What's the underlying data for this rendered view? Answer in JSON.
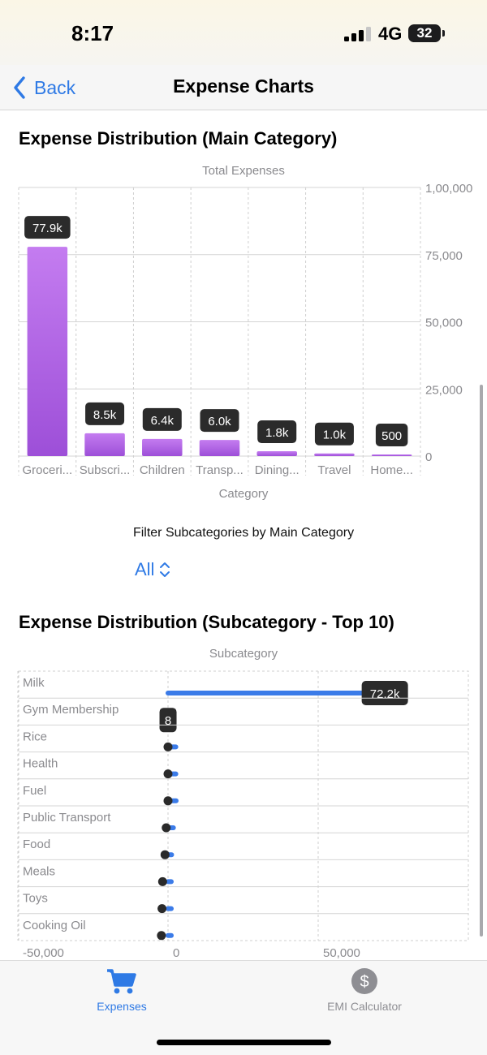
{
  "status": {
    "time": "8:17",
    "network": "4G",
    "battery": "32"
  },
  "nav": {
    "back_label": "Back",
    "title": "Expense Charts"
  },
  "main_chart_section": {
    "title": "Expense Distribution (Main Category)"
  },
  "filter": {
    "label": "Filter Subcategories by Main Category",
    "selected": "All"
  },
  "sub_chart_section": {
    "title": "Expense Distribution (Subcategory - Top 10)"
  },
  "tabs": [
    {
      "label": "Expenses",
      "icon": "cart-icon",
      "active": true
    },
    {
      "label": "EMI Calculator",
      "icon": "dollar-circle-icon",
      "active": false
    }
  ],
  "colors": {
    "accent": "#2f7ae5",
    "bar_top": "#c47cf0",
    "bar_bottom": "#9d4fd8",
    "label_bg": "#2b2b2b",
    "sub_bar": "#3b7be8",
    "point": "#2a2a2a"
  },
  "chart_data": [
    {
      "type": "bar",
      "title": "Total Expenses",
      "xlabel": "Category",
      "ylabel": "",
      "categories": [
        "Groceri...",
        "Subscri...",
        "Children",
        "Transp...",
        "Dining...",
        "Travel",
        "Home..."
      ],
      "values": [
        77900,
        8500,
        6400,
        6000,
        1800,
        1000,
        500
      ],
      "data_labels": [
        "77.9k",
        "8.5k",
        "6.4k",
        "6.0k",
        "1.8k",
        "1.0k",
        "500"
      ],
      "ylim": [
        0,
        100000
      ],
      "yticks": [
        0,
        25000,
        50000,
        75000,
        100000
      ],
      "ytick_labels": [
        "0",
        "25,000",
        "50,000",
        "75,000",
        "1,00,000"
      ],
      "grid": true
    },
    {
      "type": "bar",
      "orientation": "horizontal",
      "title": "Subcategory",
      "categories": [
        "Milk",
        "Gym Membership",
        "Rice",
        "Health",
        "Fuel",
        "Public Transport",
        "Food",
        "Meals",
        "Toys",
        "Cooking Oil"
      ],
      "values": [
        72200,
        8,
        2600,
        2600,
        2700,
        1800,
        1200,
        500,
        400,
        300
      ],
      "point_values": [
        72200,
        8,
        0,
        0,
        0,
        -600,
        -1000,
        -1800,
        -2000,
        -2200
      ],
      "data_labels": [
        "72.2k",
        "8",
        "",
        "",
        "",
        "",
        "",
        "",
        "",
        ""
      ],
      "xlim": [
        -50000,
        100000
      ],
      "xticks": [
        -50000,
        0,
        50000
      ],
      "xtick_labels": [
        "-50,000",
        "0",
        "50,000"
      ],
      "grid": true
    }
  ]
}
